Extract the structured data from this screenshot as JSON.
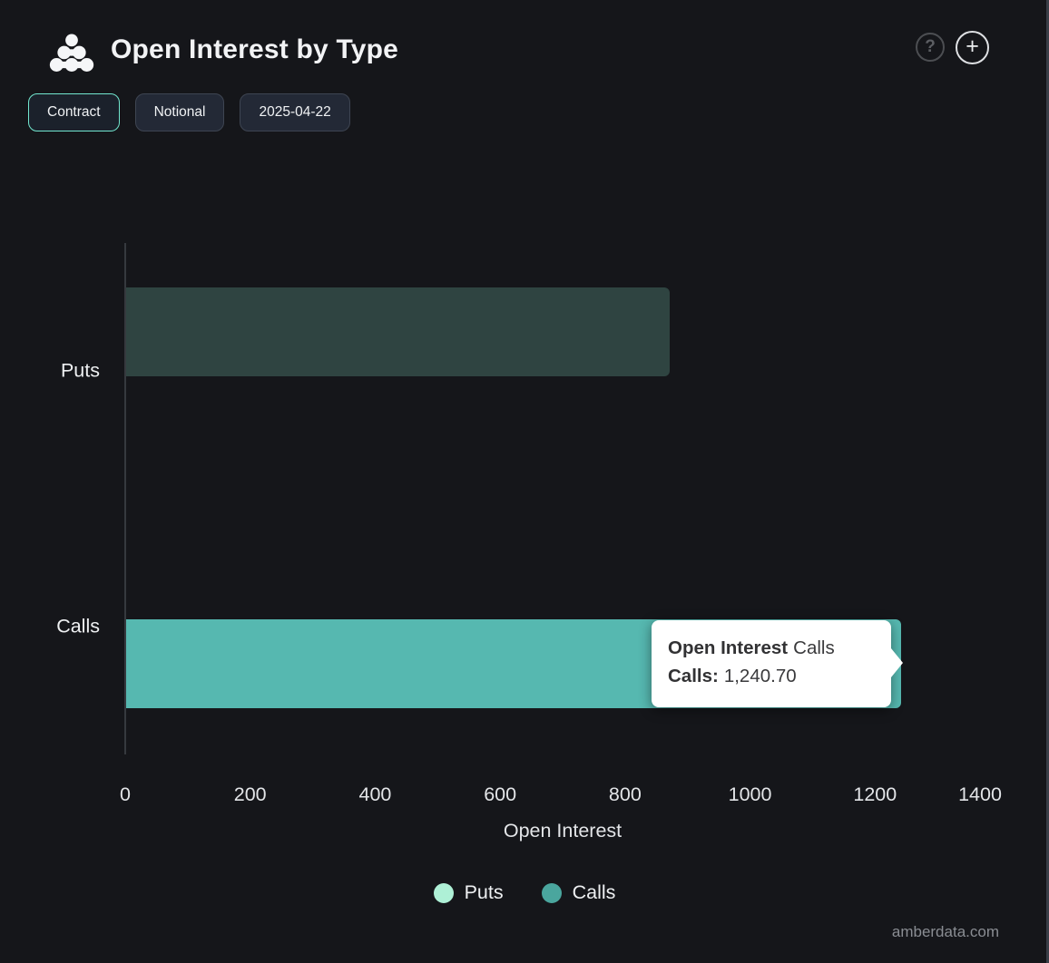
{
  "header": {
    "title": "Open Interest by Type",
    "help_glyph": "?",
    "add_glyph": "+"
  },
  "toolbar": {
    "buttons": [
      {
        "label": "Contract",
        "active": true
      },
      {
        "label": "Notional",
        "active": false
      },
      {
        "label": "2025-04-22",
        "active": false
      }
    ]
  },
  "chart_data": {
    "type": "bar",
    "orientation": "horizontal",
    "title": "Open Interest by Type",
    "categories": [
      "Puts",
      "Calls"
    ],
    "series": [
      {
        "name": "Puts",
        "values": [
          870,
          0
        ],
        "bar_color": "#2f4441",
        "legend_color": "#aef0d6"
      },
      {
        "name": "Calls",
        "values": [
          0,
          1240.7
        ],
        "bar_color": "#56b8b0",
        "legend_color": "#4aa69e"
      }
    ],
    "xlabel": "Open Interest",
    "ylabel": "",
    "xlim": [
      0,
      1400
    ],
    "xticks": [
      0,
      200,
      400,
      600,
      800,
      1000,
      1200,
      1400
    ],
    "grid": false,
    "legend_position": "bottom"
  },
  "tooltip": {
    "series_bold": "Open Interest",
    "series_suffix": "Calls",
    "row_label": "Calls:",
    "row_value": "1,240.70"
  },
  "watermark": "amberdata.com",
  "colors": {
    "background": "#15161a",
    "accent_active_border": "#72e7cf",
    "tooltip_bg": "#ffffff",
    "axis_line": "#36393e"
  }
}
